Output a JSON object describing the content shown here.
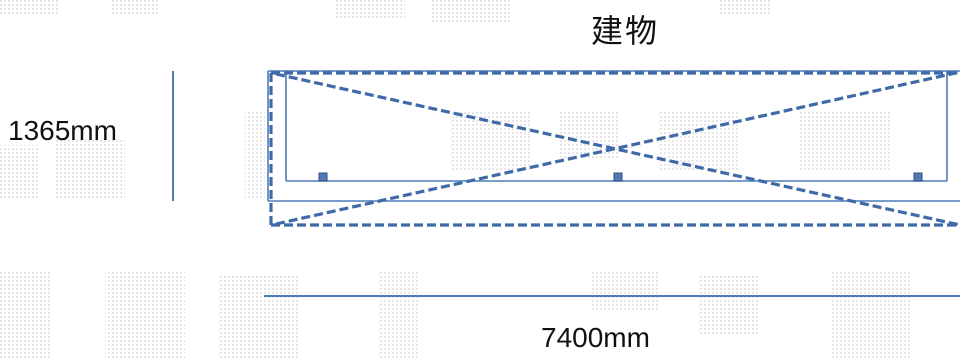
{
  "diagram": {
    "title": "建物",
    "height_label": "1365mm",
    "width_label": "7400mm",
    "colors": {
      "line": "#4f7bb8",
      "dashed": "#3e6aa8",
      "marker": "#4f7bb8",
      "text": "#111111",
      "watermark": "#e4e4e4"
    }
  }
}
